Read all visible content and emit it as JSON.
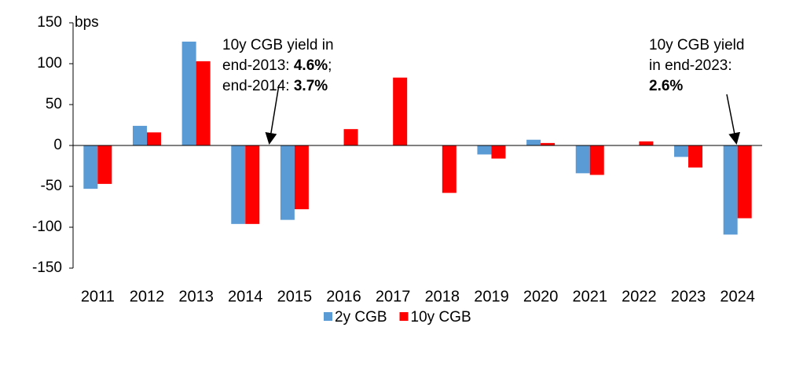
{
  "chart_data": {
    "type": "bar",
    "y_label": "bps",
    "categories": [
      "2011",
      "2012",
      "2013",
      "2014",
      "2015",
      "2016",
      "2017",
      "2018",
      "2019",
      "2020",
      "2021",
      "2022",
      "2023",
      "2024"
    ],
    "series": [
      {
        "name": "2y CGB",
        "color": "#5b9bd5",
        "values": [
          -53,
          24,
          127,
          -96,
          -91,
          0,
          0,
          0,
          -11,
          7,
          -34,
          0,
          -14,
          -109
        ]
      },
      {
        "name": "10y CGB",
        "color": "#ff0000",
        "values": [
          -47,
          16,
          103,
          -96,
          -78,
          20,
          83,
          -58,
          -16,
          3,
          -36,
          5,
          -27,
          -89
        ]
      }
    ],
    "ylim": [
      -150,
      150
    ],
    "yticks": [
      -150,
      -100,
      -50,
      0,
      50,
      100,
      150
    ],
    "grid": false,
    "legend": "bottom",
    "annotations": [
      {
        "lines": [
          [
            {
              "text": "10y CGB  yield in"
            }
          ],
          [
            {
              "text": "end-2013: "
            },
            {
              "text": "4.6%",
              "bold": true
            },
            {
              "text": ";"
            }
          ],
          [
            {
              "text": "end-2014: "
            },
            {
              "text": "3.7%",
              "bold": true
            }
          ]
        ]
      },
      {
        "lines": [
          [
            {
              "text": "10y CGB  yield"
            }
          ],
          [
            {
              "text": "in end-2023:"
            }
          ],
          [
            {
              "text": "2.6%",
              "bold": true
            }
          ]
        ]
      }
    ]
  }
}
